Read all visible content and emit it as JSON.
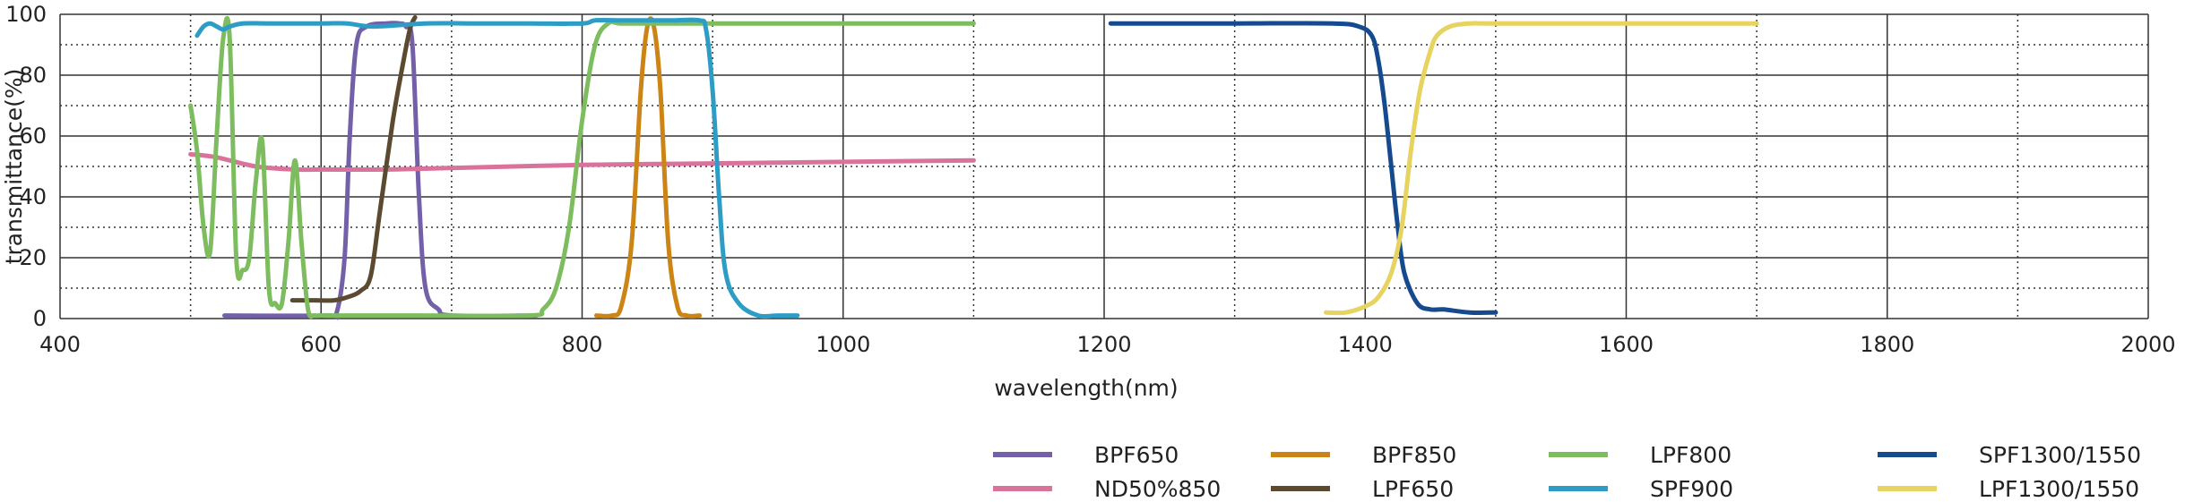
{
  "chart_data": {
    "type": "line",
    "xlabel": "wavelength(nm)",
    "ylabel": "transmittance(%)",
    "xlim": [
      400,
      2000
    ],
    "ylim": [
      0,
      100
    ],
    "xticks": [
      400,
      600,
      800,
      1000,
      1200,
      1400,
      1600,
      1800,
      2000
    ],
    "yticks": [
      0,
      20,
      40,
      60,
      80,
      100
    ],
    "grid": true,
    "legend_position": "bottom-right",
    "series": [
      {
        "name": "BPF650",
        "color": "#7460a8",
        "x": [
          526,
          605,
          612,
          618,
          622,
          627,
          635,
          650,
          660,
          665,
          670,
          675,
          680,
          690,
          700,
          765
        ],
        "y": [
          1,
          1,
          2,
          20,
          60,
          90,
          96,
          97,
          97,
          96,
          90,
          40,
          10,
          3,
          1,
          1
        ]
      },
      {
        "name": "ND50%850",
        "color": "#d9739b",
        "x": [
          500,
          520,
          550,
          580,
          600,
          650,
          700,
          800,
          900,
          1000,
          1100
        ],
        "y": [
          54,
          53,
          50,
          49,
          49,
          49,
          49.5,
          50.5,
          51,
          51.5,
          52
        ]
      },
      {
        "name": "BPF850",
        "color": "#cc8415",
        "x": [
          811,
          823,
          830,
          838,
          845,
          850,
          855,
          860,
          866,
          873,
          880,
          890
        ],
        "y": [
          1,
          1,
          4,
          25,
          75,
          96,
          96,
          75,
          25,
          4,
          1,
          1
        ]
      },
      {
        "name": "LPF650",
        "color": "#5b4a30",
        "x": [
          578,
          595,
          610,
          620,
          630,
          638,
          645,
          655,
          662,
          668,
          672
        ],
        "y": [
          6,
          6,
          6,
          7,
          9,
          14,
          35,
          65,
          82,
          95,
          99
        ]
      },
      {
        "name": "LPF800",
        "color": "#7ebd5f",
        "x": [
          500,
          505,
          510,
          515,
          520,
          525,
          530,
          535,
          540,
          545,
          550,
          555,
          560,
          565,
          570,
          575,
          580,
          585,
          590,
          595,
          600,
          620,
          680,
          760,
          770,
          780,
          790,
          800,
          810,
          820,
          830,
          860,
          900,
          950,
          1000,
          1100
        ],
        "y": [
          70,
          55,
          30,
          22,
          60,
          92,
          92,
          20,
          16,
          20,
          45,
          58,
          10,
          5,
          5,
          25,
          52,
          25,
          3,
          1,
          1,
          1,
          1,
          1,
          3,
          10,
          30,
          65,
          90,
          97,
          97,
          97,
          97,
          97,
          97,
          97
        ]
      },
      {
        "name": "SPF900",
        "color": "#2e9dc6",
        "x": [
          505,
          510,
          515,
          520,
          525,
          530,
          540,
          560,
          600,
          620,
          640,
          680,
          720,
          760,
          800,
          810,
          830,
          850,
          870,
          890,
          895,
          900,
          905,
          910,
          920,
          935,
          950,
          965
        ],
        "y": [
          93,
          96,
          97,
          96,
          95,
          96,
          97,
          97,
          97,
          97,
          96,
          97,
          97,
          97,
          97,
          98,
          98,
          98,
          98,
          98,
          95,
          75,
          40,
          15,
          5,
          1,
          1,
          1
        ]
      },
      {
        "name": "SPF1300/1550",
        "color": "#154a8f",
        "x": [
          1205,
          1300,
          1375,
          1395,
          1405,
          1410,
          1415,
          1420,
          1425,
          1430,
          1440,
          1450,
          1460,
          1480,
          1500
        ],
        "y": [
          97,
          97,
          97,
          96,
          93,
          85,
          70,
          50,
          30,
          15,
          5,
          3,
          3,
          2,
          2
        ]
      },
      {
        "name": "LPF1300/1550",
        "color": "#e6d360",
        "x": [
          1370,
          1385,
          1400,
          1410,
          1420,
          1428,
          1435,
          1442,
          1450,
          1455,
          1465,
          1480,
          1500,
          1600,
          1700
        ],
        "y": [
          2,
          2,
          4,
          7,
          15,
          30,
          55,
          75,
          88,
          93,
          96,
          97,
          97,
          97,
          97
        ]
      }
    ]
  }
}
